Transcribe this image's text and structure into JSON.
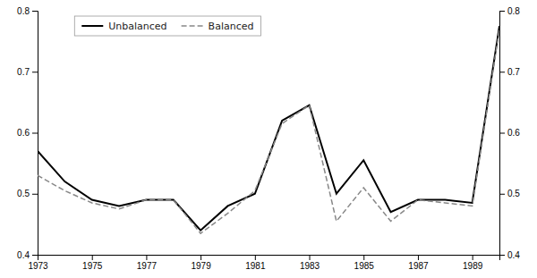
{
  "chart_data": {
    "type": "line",
    "x": [
      1973,
      1974,
      1975,
      1976,
      1977,
      1978,
      1979,
      1980,
      1981,
      1982,
      1983,
      1984,
      1985,
      1986,
      1987,
      1988,
      1989,
      1990
    ],
    "series": [
      {
        "name": "Unbalanced",
        "color": "#000000",
        "line_style": "solid",
        "values": [
          0.57,
          0.52,
          0.49,
          0.48,
          0.49,
          0.49,
          0.44,
          0.48,
          0.5,
          0.62,
          0.645,
          0.5,
          0.555,
          0.47,
          0.49,
          0.49,
          0.485,
          0.775
        ]
      },
      {
        "name": "Balanced",
        "color": "#888888",
        "line_style": "dashed",
        "values": [
          0.53,
          0.505,
          0.485,
          0.475,
          0.49,
          0.49,
          0.435,
          0.468,
          0.505,
          0.615,
          0.645,
          0.455,
          0.51,
          0.455,
          0.49,
          0.485,
          0.48,
          0.77
        ]
      }
    ],
    "xlim": [
      1973,
      1990
    ],
    "xticks": [
      1973,
      1975,
      1977,
      1979,
      1981,
      1983,
      1985,
      1987,
      1989
    ],
    "ylim": [
      0.4,
      0.8
    ],
    "yticks": [
      0.4,
      0.5,
      0.6,
      0.7,
      0.8
    ],
    "y2lim": [
      0.4,
      0.8
    ],
    "y2ticks": [
      0.4,
      0.5,
      0.6,
      0.7,
      0.8
    ],
    "grid": false,
    "legend": "upper left"
  }
}
